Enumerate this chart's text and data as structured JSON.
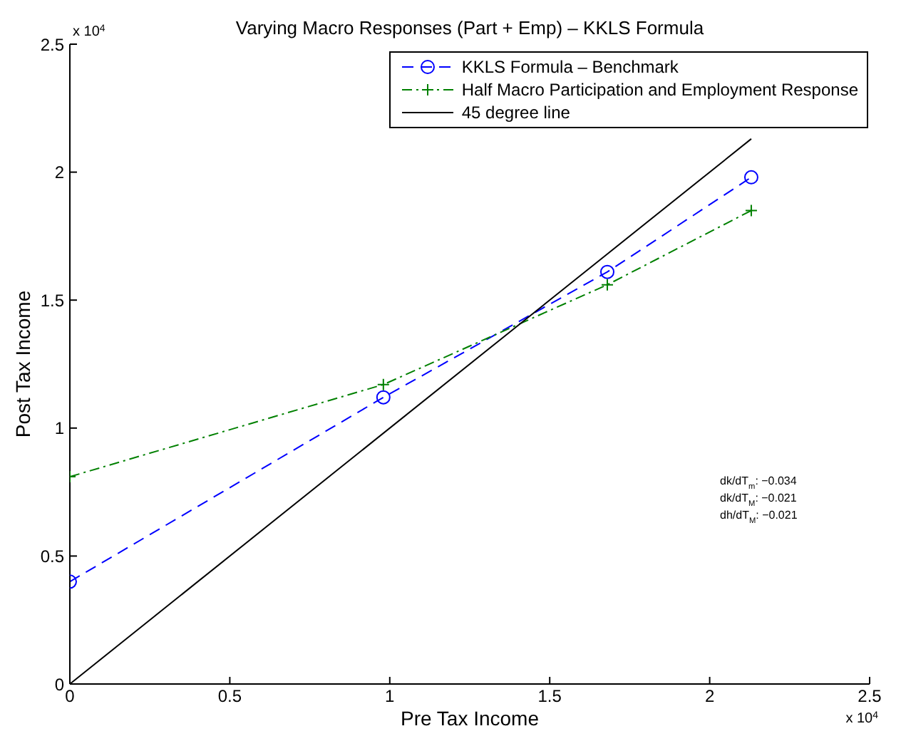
{
  "chart_data": {
    "type": "line",
    "title": "Varying Macro Responses (Part + Emp) – KKLS Formula",
    "xlabel": "Pre Tax Income",
    "ylabel": "Post Tax Income",
    "xlim": [
      0,
      2.5
    ],
    "ylim": [
      0,
      2.5
    ],
    "xticks": [
      0,
      0.5,
      1,
      1.5,
      2,
      2.5
    ],
    "yticks": [
      0,
      0.5,
      1,
      1.5,
      2,
      2.5
    ],
    "grid": false,
    "legend": "top right",
    "series": [
      {
        "name": "KKLS Formula – Benchmark",
        "color": "#0000ff",
        "marker": "circle",
        "line_style": "dashed",
        "x": [
          0,
          0.98,
          1.68,
          2.13
        ],
        "values": [
          0.4,
          1.12,
          1.61,
          1.98
        ]
      },
      {
        "name": "Half Macro Participation and Employment Response",
        "color": "#008000",
        "marker": "cross",
        "line_style": "dashdot",
        "x": [
          0,
          0.98,
          1.68,
          2.13
        ],
        "values": [
          0.81,
          1.17,
          1.56,
          1.85
        ]
      },
      {
        "name": "45 degree line",
        "color": "#000000",
        "marker": "none",
        "line_style": "solid",
        "x": [
          0,
          2.13
        ],
        "values": [
          0,
          2.13
        ]
      }
    ],
    "annotations": [
      "x 10$^{4}$",
      "x 10$^{4}$",
      "dk/dT$_{m}$: −0.034",
      "dk/dT$_{M}$: −0.021",
      "dh/dT$_{M}$: −0.021"
    ]
  }
}
